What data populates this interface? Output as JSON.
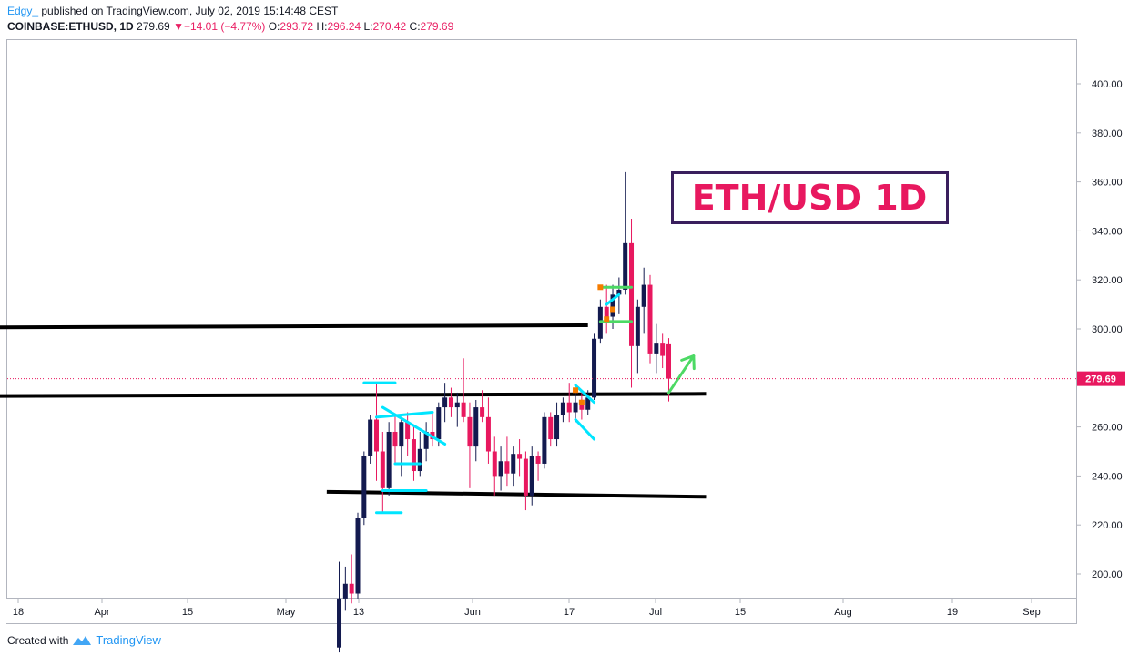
{
  "header": {
    "author": "Edgy_",
    "published": "published on TradingView.com, July 02, 2019 15:14:48 CEST",
    "symbol": "COINBASE:ETHUSD, 1D",
    "last": "279.69",
    "change": "−14.01 (−4.77%)",
    "open_label": "O:",
    "open": "293.72",
    "high_label": "H:",
    "high": "296.24",
    "low_label": "L:",
    "low": "270.42",
    "close_label": "C:",
    "close": "279.69"
  },
  "footer": {
    "created_with": "Created with",
    "brand": "TradingView",
    "brand_icon": "tradingview-logo-icon"
  },
  "annotation": {
    "text": "ETH/USD 1D"
  },
  "colors": {
    "up": "#131a4f",
    "down": "#e8185f",
    "price_line": "#e8185f",
    "trend": "#000000",
    "cyan": "#00e5ff",
    "green": "#4cd964",
    "orange": "#f57c00"
  },
  "chart_data": {
    "type": "candlestick",
    "symbol": "COINBASE:ETHUSD",
    "timeframe": "1D",
    "y_ticks": [
      200,
      220,
      240,
      260,
      280,
      300,
      320,
      340,
      360,
      380,
      400
    ],
    "x_ticks": [
      "18",
      "Apr",
      "15",
      "May",
      "13",
      "Jun",
      "17",
      "Jul",
      "15",
      "Aug",
      "19",
      "Sep"
    ],
    "ylim": [
      190,
      420
    ],
    "last_price": 279.69,
    "candles": [
      {
        "date": "2019-05-10",
        "o": 170,
        "h": 205,
        "l": 168,
        "c": 190
      },
      {
        "date": "2019-05-11",
        "o": 190,
        "h": 203,
        "l": 185,
        "c": 196
      },
      {
        "date": "2019-05-12",
        "o": 196,
        "h": 208,
        "l": 188,
        "c": 192
      },
      {
        "date": "2019-05-13",
        "o": 192,
        "h": 225,
        "l": 190,
        "c": 223
      },
      {
        "date": "2019-05-14",
        "o": 223,
        "h": 250,
        "l": 220,
        "c": 248
      },
      {
        "date": "2019-05-15",
        "o": 248,
        "h": 265,
        "l": 245,
        "c": 263
      },
      {
        "date": "2019-05-16",
        "o": 263,
        "h": 278,
        "l": 238,
        "c": 250
      },
      {
        "date": "2019-05-17",
        "o": 250,
        "h": 258,
        "l": 225,
        "c": 235
      },
      {
        "date": "2019-05-18",
        "o": 235,
        "h": 262,
        "l": 232,
        "c": 258
      },
      {
        "date": "2019-05-19",
        "o": 258,
        "h": 265,
        "l": 245,
        "c": 252
      },
      {
        "date": "2019-05-20",
        "o": 252,
        "h": 264,
        "l": 240,
        "c": 262
      },
      {
        "date": "2019-05-21",
        "o": 262,
        "h": 266,
        "l": 248,
        "c": 255
      },
      {
        "date": "2019-05-22",
        "o": 255,
        "h": 260,
        "l": 238,
        "c": 242
      },
      {
        "date": "2019-05-23",
        "o": 242,
        "h": 258,
        "l": 240,
        "c": 251
      },
      {
        "date": "2019-05-24",
        "o": 251,
        "h": 262,
        "l": 246,
        "c": 258
      },
      {
        "date": "2019-05-25",
        "o": 258,
        "h": 266,
        "l": 252,
        "c": 255
      },
      {
        "date": "2019-05-26",
        "o": 255,
        "h": 270,
        "l": 252,
        "c": 268
      },
      {
        "date": "2019-05-27",
        "o": 268,
        "h": 278,
        "l": 262,
        "c": 272
      },
      {
        "date": "2019-05-28",
        "o": 272,
        "h": 276,
        "l": 264,
        "c": 268
      },
      {
        "date": "2019-05-29",
        "o": 268,
        "h": 274,
        "l": 260,
        "c": 270
      },
      {
        "date": "2019-05-30",
        "o": 270,
        "h": 288,
        "l": 262,
        "c": 264
      },
      {
        "date": "2019-05-31",
        "o": 264,
        "h": 270,
        "l": 235,
        "c": 252
      },
      {
        "date": "2019-06-01",
        "o": 252,
        "h": 271,
        "l": 246,
        "c": 268
      },
      {
        "date": "2019-06-02",
        "o": 268,
        "h": 275,
        "l": 262,
        "c": 264
      },
      {
        "date": "2019-06-03",
        "o": 264,
        "h": 272,
        "l": 245,
        "c": 250
      },
      {
        "date": "2019-06-04",
        "o": 250,
        "h": 256,
        "l": 232,
        "c": 240
      },
      {
        "date": "2019-06-05",
        "o": 240,
        "h": 252,
        "l": 234,
        "c": 246
      },
      {
        "date": "2019-06-06",
        "o": 246,
        "h": 256,
        "l": 236,
        "c": 241
      },
      {
        "date": "2019-06-07",
        "o": 241,
        "h": 252,
        "l": 236,
        "c": 249
      },
      {
        "date": "2019-06-08",
        "o": 249,
        "h": 255,
        "l": 240,
        "c": 247
      },
      {
        "date": "2019-06-09",
        "o": 247,
        "h": 250,
        "l": 226,
        "c": 232
      },
      {
        "date": "2019-06-10",
        "o": 232,
        "h": 252,
        "l": 228,
        "c": 248
      },
      {
        "date": "2019-06-11",
        "o": 248,
        "h": 250,
        "l": 238,
        "c": 245
      },
      {
        "date": "2019-06-12",
        "o": 245,
        "h": 266,
        "l": 243,
        "c": 264
      },
      {
        "date": "2019-06-13",
        "o": 264,
        "h": 266,
        "l": 252,
        "c": 255
      },
      {
        "date": "2019-06-14",
        "o": 255,
        "h": 270,
        "l": 252,
        "c": 265
      },
      {
        "date": "2019-06-15",
        "o": 265,
        "h": 272,
        "l": 262,
        "c": 270
      },
      {
        "date": "2019-06-16",
        "o": 270,
        "h": 278,
        "l": 262,
        "c": 266
      },
      {
        "date": "2019-06-17",
        "o": 266,
        "h": 275,
        "l": 262,
        "c": 270
      },
      {
        "date": "2019-06-18",
        "o": 270,
        "h": 274,
        "l": 263,
        "c": 267
      },
      {
        "date": "2019-06-19",
        "o": 267,
        "h": 275,
        "l": 265,
        "c": 272
      },
      {
        "date": "2019-06-20",
        "o": 272,
        "h": 298,
        "l": 271,
        "c": 296
      },
      {
        "date": "2019-06-21",
        "o": 296,
        "h": 312,
        "l": 294,
        "c": 309
      },
      {
        "date": "2019-06-22",
        "o": 309,
        "h": 318,
        "l": 298,
        "c": 305
      },
      {
        "date": "2019-06-23",
        "o": 305,
        "h": 318,
        "l": 300,
        "c": 314
      },
      {
        "date": "2019-06-24",
        "o": 314,
        "h": 321,
        "l": 306,
        "c": 316
      },
      {
        "date": "2019-06-25",
        "o": 316,
        "h": 364,
        "l": 314,
        "c": 335
      },
      {
        "date": "2019-06-26",
        "o": 335,
        "h": 345,
        "l": 276,
        "c": 293
      },
      {
        "date": "2019-06-27",
        "o": 293,
        "h": 312,
        "l": 282,
        "c": 309
      },
      {
        "date": "2019-06-28",
        "o": 309,
        "h": 325,
        "l": 298,
        "c": 318
      },
      {
        "date": "2019-06-29",
        "o": 318,
        "h": 322,
        "l": 286,
        "c": 290
      },
      {
        "date": "2019-06-30",
        "o": 290,
        "h": 302,
        "l": 282,
        "c": 294
      },
      {
        "date": "2019-07-01",
        "o": 294,
        "h": 298,
        "l": 284,
        "c": 289
      },
      {
        "date": "2019-07-02",
        "o": 293.72,
        "h": 296.24,
        "l": 270.42,
        "c": 279.69
      }
    ],
    "trend_lines": [
      {
        "from": {
          "date": "2019-02-26",
          "price": 300.5
        },
        "to": {
          "date": "2019-06-19",
          "price": 301.5
        },
        "color": "black"
      },
      {
        "from": {
          "date": "2019-02-26",
          "price": 272.5
        },
        "to": {
          "date": "2019-07-08",
          "price": 273.5
        },
        "color": "black"
      },
      {
        "from": {
          "date": "2019-05-08",
          "price": 233.5
        },
        "to": {
          "date": "2019-07-08",
          "price": 231.5
        },
        "color": "black"
      }
    ],
    "drawings": [
      {
        "kind": "segment",
        "color": "cyan",
        "from": {
          "date": "2019-05-14",
          "price": 278
        },
        "to": {
          "date": "2019-05-19",
          "price": 278
        }
      },
      {
        "kind": "segment",
        "color": "cyan",
        "from": {
          "date": "2019-05-16",
          "price": 264
        },
        "to": {
          "date": "2019-05-25",
          "price": 266
        }
      },
      {
        "kind": "segment",
        "color": "cyan",
        "from": {
          "date": "2019-05-17",
          "price": 268
        },
        "to": {
          "date": "2019-05-27",
          "price": 253
        }
      },
      {
        "kind": "segment",
        "color": "cyan",
        "from": {
          "date": "2019-05-19",
          "price": 245
        },
        "to": {
          "date": "2019-05-23",
          "price": 245
        }
      },
      {
        "kind": "segment",
        "color": "cyan",
        "from": {
          "date": "2019-05-17",
          "price": 234
        },
        "to": {
          "date": "2019-05-24",
          "price": 234
        }
      },
      {
        "kind": "segment",
        "color": "cyan",
        "from": {
          "date": "2019-05-16",
          "price": 225
        },
        "to": {
          "date": "2019-05-20",
          "price": 225
        }
      },
      {
        "kind": "segment",
        "color": "cyan",
        "from": {
          "date": "2019-06-17",
          "price": 277
        },
        "to": {
          "date": "2019-06-20",
          "price": 270
        }
      },
      {
        "kind": "segment",
        "color": "cyan",
        "from": {
          "date": "2019-06-17",
          "price": 263
        },
        "to": {
          "date": "2019-06-20",
          "price": 255
        }
      },
      {
        "kind": "segment",
        "color": "cyan",
        "from": {
          "date": "2019-06-22",
          "price": 310
        },
        "to": {
          "date": "2019-06-24",
          "price": 314
        }
      },
      {
        "kind": "segment",
        "color": "green",
        "from": {
          "date": "2019-06-21",
          "price": 317
        },
        "to": {
          "date": "2019-06-26",
          "price": 317
        }
      },
      {
        "kind": "segment",
        "color": "green",
        "from": {
          "date": "2019-06-21",
          "price": 303
        },
        "to": {
          "date": "2019-06-26",
          "price": 303
        }
      },
      {
        "kind": "arrow",
        "color": "green",
        "from": {
          "date": "2019-07-02",
          "price": 274
        },
        "to": {
          "date": "2019-07-06",
          "price": 289
        }
      }
    ],
    "markers": [
      {
        "date": "2019-06-17",
        "price": 275,
        "color": "orange"
      },
      {
        "date": "2019-06-18",
        "price": 270,
        "color": "orange"
      },
      {
        "date": "2019-06-21",
        "price": 317,
        "color": "orange"
      },
      {
        "date": "2019-06-22",
        "price": 304,
        "color": "orange"
      },
      {
        "date": "2019-06-23",
        "price": 308,
        "color": "orange"
      }
    ]
  }
}
